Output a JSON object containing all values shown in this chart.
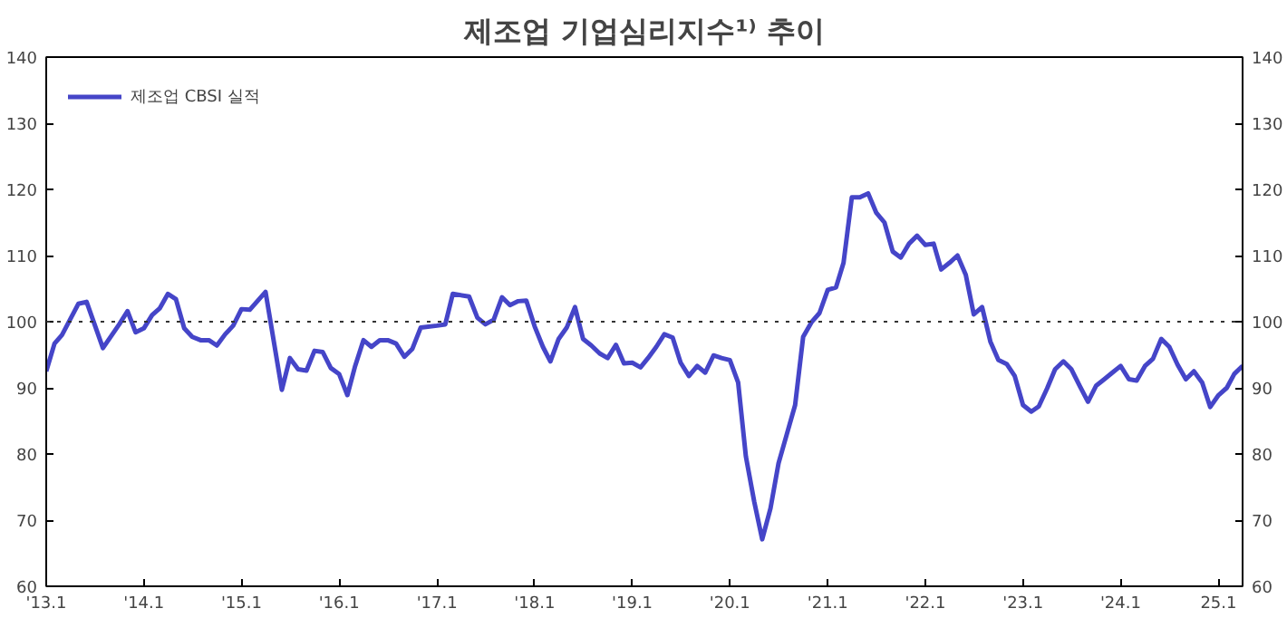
{
  "chart_data": {
    "type": "line",
    "title": "제조업 기업심리지수¹⁾ 추이",
    "x": [
      "2013-01",
      "2013-02",
      "2013-03",
      "2013-05",
      "2013-06",
      "2013-08",
      "2013-10",
      "2013-11",
      "2013-12",
      "2014-01",
      "2014-02",
      "2014-03",
      "2014-04",
      "2014-05",
      "2014-06",
      "2014-07",
      "2014-08",
      "2014-09",
      "2014-10",
      "2014-11",
      "2014-12",
      "2015-01",
      "2015-02",
      "2015-04",
      "2015-06",
      "2015-07",
      "2015-08",
      "2015-09",
      "2015-10",
      "2015-11",
      "2015-12",
      "2016-01",
      "2016-02",
      "2016-03",
      "2016-04",
      "2016-05",
      "2016-06",
      "2016-07",
      "2016-08",
      "2016-09",
      "2016-10",
      "2016-11",
      "2017-01",
      "2017-02",
      "2017-03",
      "2017-05",
      "2017-06",
      "2017-07",
      "2017-08",
      "2017-09",
      "2017-10",
      "2017-11",
      "2017-12",
      "2018-01",
      "2018-02",
      "2018-03",
      "2018-04",
      "2018-05",
      "2018-06",
      "2018-07",
      "2018-08",
      "2018-09",
      "2018-10",
      "2018-11",
      "2018-12",
      "2019-01",
      "2019-02",
      "2019-03",
      "2019-04",
      "2019-05",
      "2019-06",
      "2019-07",
      "2019-08",
      "2019-09",
      "2019-10",
      "2019-11",
      "2019-12",
      "2020-01",
      "2020-02",
      "2020-03",
      "2020-04",
      "2020-05",
      "2020-06",
      "2020-07",
      "2020-08",
      "2020-09",
      "2020-10",
      "2020-11",
      "2020-12",
      "2021-01",
      "2021-02",
      "2021-03",
      "2021-04",
      "2021-05",
      "2021-06",
      "2021-07",
      "2021-08",
      "2021-09",
      "2021-10",
      "2021-11",
      "2021-12",
      "2022-01",
      "2022-02",
      "2022-03",
      "2022-04",
      "2022-05",
      "2022-06",
      "2022-07",
      "2022-08",
      "2022-09",
      "2022-10",
      "2022-11",
      "2022-12",
      "2023-01",
      "2023-02",
      "2023-03",
      "2023-04",
      "2023-05",
      "2023-06",
      "2023-07",
      "2023-08",
      "2023-09",
      "2023-10",
      "2023-11",
      "2023-12",
      "2024-01",
      "2024-02",
      "2024-03",
      "2024-04",
      "2024-05",
      "2024-06",
      "2024-07",
      "2024-08",
      "2024-09",
      "2024-10",
      "2024-11",
      "2024-12",
      "2025-01",
      "2025-02",
      "2025-03",
      "2025-04"
    ],
    "series": [
      {
        "name": "제조업 CBSI 실적",
        "color": "#4545c8",
        "values": [
          92.5,
          96.7,
          98,
          102.7,
          103,
          96,
          99.6,
          101.6,
          98.4,
          99,
          101,
          102,
          104.2,
          103.4,
          99,
          97.7,
          97.2,
          97.2,
          96.4,
          98.1,
          99.4,
          101.9,
          101.8,
          104.5,
          89.7,
          94.5,
          92.8,
          92.6,
          95.6,
          95.4,
          93,
          92.1,
          88.9,
          93.3,
          97.2,
          96.2,
          97.2,
          97.2,
          96.7,
          94.7,
          95.9,
          99.1,
          99.4,
          99.6,
          104.2,
          103.8,
          100.6,
          99.6,
          100.3,
          103.7,
          102.5,
          103.1,
          103.2,
          99.3,
          96.2,
          94,
          97.4,
          99.1,
          102.2,
          97.4,
          96.4,
          95.2,
          94.5,
          96.5,
          93.7,
          93.8,
          93.1,
          94.5,
          96.2,
          98.1,
          97.6,
          93.8,
          91.8,
          93.3,
          92.3,
          94.9,
          94.5,
          94.2,
          90.8,
          79.6,
          72.8,
          67.1,
          71.8,
          78.6,
          83,
          87.4,
          97.7,
          99.9,
          101.3,
          104.8,
          105.2,
          108.9,
          118.8,
          118.8,
          119.4,
          116.5,
          115,
          110.6,
          109.7,
          111.8,
          113,
          111.6,
          111.8,
          107.9,
          108.9,
          110,
          107.1,
          101.1,
          102.2,
          97,
          94.2,
          93.6,
          91.8,
          87.4,
          86.4,
          87.2,
          89.9,
          92.8,
          94,
          92.8,
          90.3,
          87.9,
          90.3,
          91.3,
          92.3,
          93.3,
          91.3,
          91.1,
          93.3,
          94.4,
          97.4,
          96.2,
          93.5,
          91.3,
          92.5,
          90.8,
          87.1,
          88.9,
          90,
          92.1,
          93.3
        ]
      }
    ],
    "xlim": [
      "2013-01",
      "2025-04"
    ],
    "xticks": [
      {
        "value": "2013-01",
        "label": "'13.1"
      },
      {
        "value": "2014-01",
        "label": "'14.1"
      },
      {
        "value": "2015-01",
        "label": "'15.1"
      },
      {
        "value": "2016-01",
        "label": "'16.1"
      },
      {
        "value": "2017-01",
        "label": "'17.1"
      },
      {
        "value": "2018-01",
        "label": "'18.1"
      },
      {
        "value": "2019-01",
        "label": "'19.1"
      },
      {
        "value": "2020-01",
        "label": "'20.1"
      },
      {
        "value": "2021-01",
        "label": "'21.1"
      },
      {
        "value": "2022-01",
        "label": "'22.1"
      },
      {
        "value": "2023-01",
        "label": "'23.1"
      },
      {
        "value": "2024-01",
        "label": "'24.1"
      },
      {
        "value": "2025-01",
        "label": "25.1"
      }
    ],
    "ylim": [
      60,
      140
    ],
    "yticks": [
      60,
      70,
      80,
      90,
      100,
      110,
      120,
      130,
      140
    ],
    "y2lim": [
      60,
      140
    ],
    "y2ticks": [
      60,
      70,
      80,
      90,
      100,
      110,
      120,
      130,
      140
    ],
    "ref_lines": [
      {
        "axis": "y",
        "value": 100,
        "color": "#333333",
        "line_style": "dotted"
      }
    ],
    "grid": false,
    "legend": "top left",
    "marker": "none",
    "line_style": "solid"
  }
}
